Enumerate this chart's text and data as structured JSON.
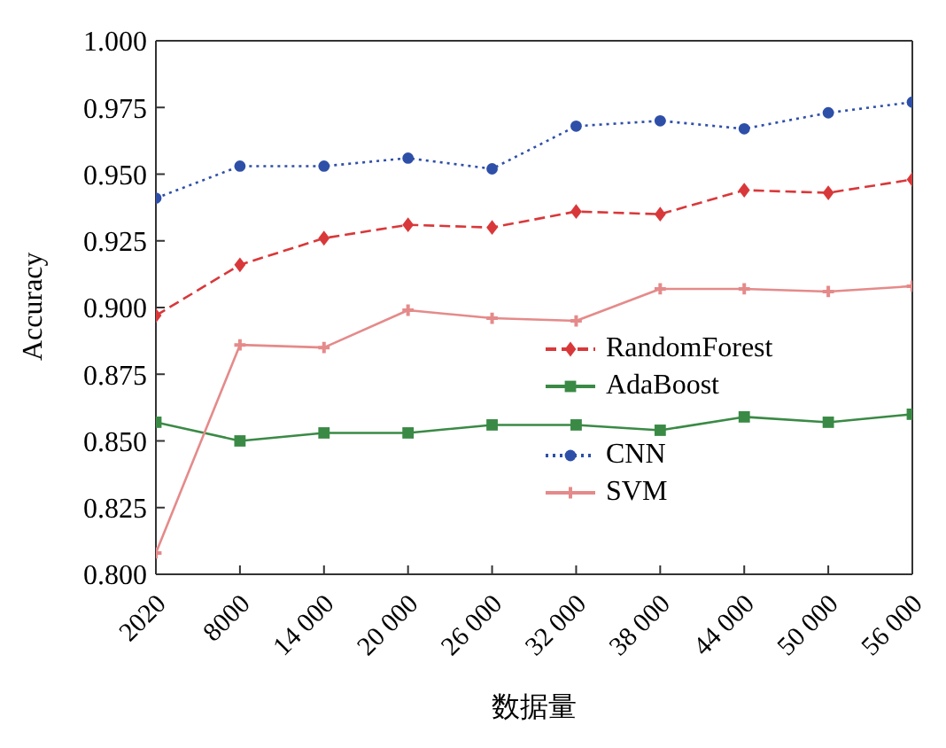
{
  "chart_data": {
    "type": "line",
    "xlabel": "数据量",
    "ylabel": "Accuracy",
    "categories": [
      "2020",
      "8000",
      "14 000",
      "20 000",
      "26 000",
      "32 000",
      "38 000",
      "44 000",
      "50 000",
      "56 000"
    ],
    "ylim": [
      0.8,
      1.0
    ],
    "yticks": [
      {
        "value": 0.8,
        "label": "0.800"
      },
      {
        "value": 0.825,
        "label": "0.825"
      },
      {
        "value": 0.85,
        "label": "0.850"
      },
      {
        "value": 0.875,
        "label": "0.875"
      },
      {
        "value": 0.9,
        "label": "0.900"
      },
      {
        "value": 0.925,
        "label": "0.925"
      },
      {
        "value": 0.95,
        "label": "0.950"
      },
      {
        "value": 0.975,
        "label": "0.975"
      },
      {
        "value": 1.0,
        "label": "1.000"
      }
    ],
    "legend": "right",
    "series": [
      {
        "name": "RandomForest",
        "color": "#d9383a",
        "marker": "diamond",
        "line_style": "dashed",
        "values": [
          0.897,
          0.916,
          0.926,
          0.931,
          0.93,
          0.936,
          0.935,
          0.944,
          0.943,
          0.948
        ]
      },
      {
        "name": "AdaBoost",
        "color": "#3a8a45",
        "marker": "square",
        "line_style": "solid",
        "values": [
          0.857,
          0.85,
          0.853,
          0.853,
          0.856,
          0.856,
          0.854,
          0.859,
          0.857,
          0.86
        ]
      },
      {
        "name": "CNN",
        "color": "#2e4fa8",
        "marker": "circle",
        "line_style": "dotted",
        "values": [
          0.941,
          0.953,
          0.953,
          0.956,
          0.952,
          0.968,
          0.97,
          0.967,
          0.973,
          0.977
        ]
      },
      {
        "name": "SVM",
        "color": "#e58a8a",
        "marker": "cross",
        "line_style": "solid",
        "values": [
          0.808,
          0.886,
          0.885,
          0.899,
          0.896,
          0.895,
          0.907,
          0.907,
          0.906,
          0.908
        ]
      }
    ]
  }
}
